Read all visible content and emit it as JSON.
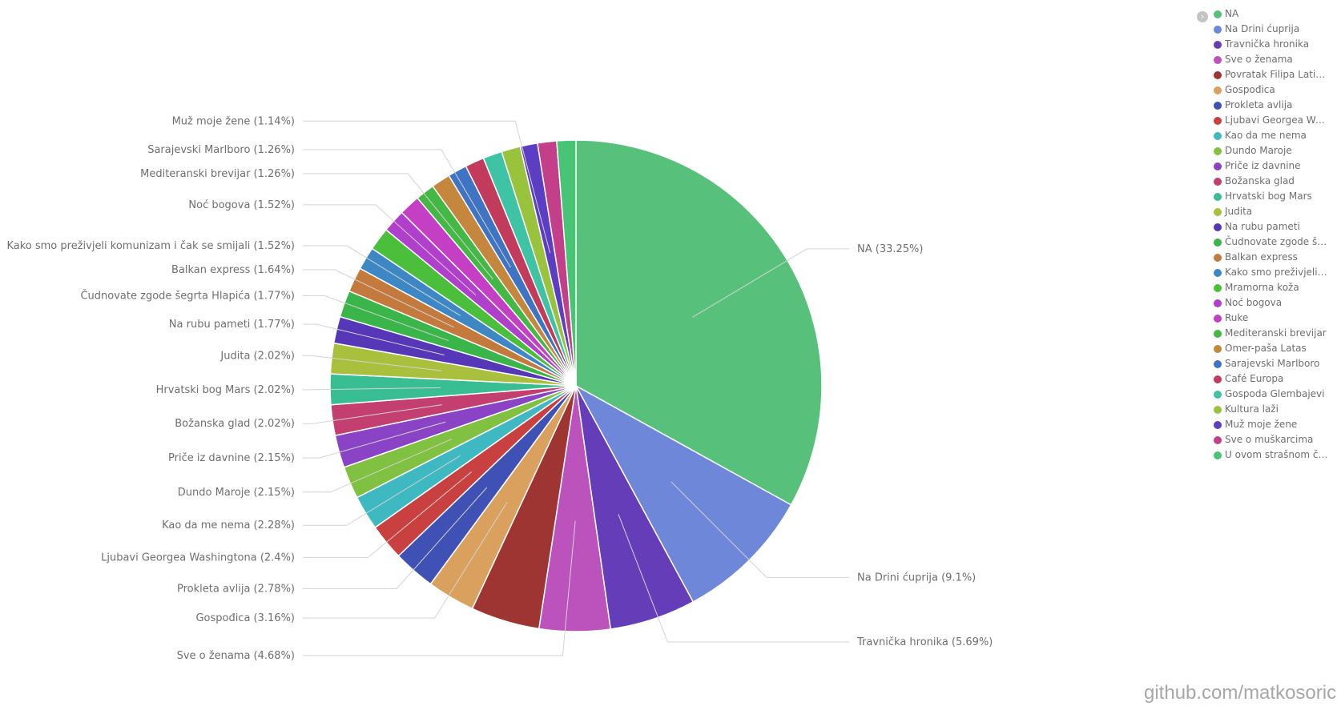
{
  "chart_data": {
    "type": "pie",
    "label_format": "{name} ({pct}%)",
    "slices": [
      {
        "name": "NA",
        "label": "NA",
        "value": 33.25,
        "color": "#57c17b"
      },
      {
        "name": "Na Drini ćuprija",
        "label": "Na Drini ćuprija",
        "value": 9.1,
        "color": "#6f87d8"
      },
      {
        "name": "Travnička hronika",
        "label": "Travnička hronika",
        "value": 5.69,
        "color": "#663db8"
      },
      {
        "name": "Sve o ženama",
        "label": "Sve o ženama",
        "value": 4.68,
        "color": "#bc52bc"
      },
      {
        "name": "Povratak Filipa Latinovicza",
        "label": "Povratak Filipa Latino...",
        "value": 4.55,
        "color": "#9e3533"
      },
      {
        "name": "Gospođica",
        "label": "Gospođica",
        "value": 3.16,
        "color": "#daa05d"
      },
      {
        "name": "Prokleta avlija",
        "label": "Prokleta avlija",
        "value": 2.78,
        "color": "#3f51b5"
      },
      {
        "name": "Ljubavi Georgea Washingtona",
        "label": "Ljubavi Georgea Was...",
        "value": 2.4,
        "color": "#c94040"
      },
      {
        "name": "Kao da me nema",
        "label": "Kao da me nema",
        "value": 2.28,
        "color": "#3eb8c1"
      },
      {
        "name": "Dundo Maroje",
        "label": "Dundo Maroje",
        "value": 2.15,
        "color": "#80c142"
      },
      {
        "name": "Priče iz davnine",
        "label": "Priče iz davnine",
        "value": 2.15,
        "color": "#8b43c6"
      },
      {
        "name": "Božanska glad",
        "label": "Božanska glad",
        "value": 2.02,
        "color": "#c23f6f"
      },
      {
        "name": "Hrvatski bog Mars",
        "label": "Hrvatski bog Mars",
        "value": 2.02,
        "color": "#39be93"
      },
      {
        "name": "Judita",
        "label": "Judita",
        "value": 2.02,
        "color": "#a9c03d"
      },
      {
        "name": "Na rubu pameti",
        "label": "Na rubu pameti",
        "value": 1.77,
        "color": "#5637b8"
      },
      {
        "name": "Čudnovate zgode šegrta Hlapića",
        "label": "Čudnovate zgode šeg...",
        "value": 1.77,
        "color": "#3ab54a"
      },
      {
        "name": "Balkan express",
        "label": "Balkan express",
        "value": 1.64,
        "color": "#c47a3d"
      },
      {
        "name": "Kako smo preživjeli komunizam i čak se smijali",
        "label": "Kako smo preživjeli k...",
        "value": 1.52,
        "color": "#3d87c4"
      },
      {
        "name": "Mramorna koža",
        "label": "Mramorna koža",
        "value": 1.52,
        "color": "#4bbf3c"
      },
      {
        "name": "Noć bogova",
        "label": "Noć bogova",
        "value": 1.52,
        "color": "#b03fcc"
      },
      {
        "name": "Ruke",
        "label": "Ruke",
        "value": 1.39,
        "color": "#c43fc4"
      },
      {
        "name": "Mediteranski brevijar",
        "label": "Mediteranski brevijar",
        "value": 1.26,
        "color": "#44b844"
      },
      {
        "name": "Omer-paša Latas",
        "label": "Omer-paša Latas",
        "value": 1.26,
        "color": "#c4873d"
      },
      {
        "name": "Sarajevski Marlboro",
        "label": "Sarajevski Marlboro",
        "value": 1.26,
        "color": "#3f74c4"
      },
      {
        "name": "Café Europa",
        "label": "Café Europa",
        "value": 1.26,
        "color": "#c23a5c"
      },
      {
        "name": "Gospoda Glembajevi",
        "label": "Gospoda Glembajevi",
        "value": 1.26,
        "color": "#3ec4a4"
      },
      {
        "name": "Kultura laži",
        "label": "Kultura laži",
        "value": 1.26,
        "color": "#99c23d"
      },
      {
        "name": "Muž moje žene",
        "label": "Muž moje žene",
        "value": 1.14,
        "color": "#5b3ec4"
      },
      {
        "name": "Sve o muškarcima",
        "label": "Sve o muškarcima",
        "value": 1.26,
        "color": "#c43f8a"
      },
      {
        "name": "U ovom strašnom času",
        "label": "U ovom strašnom času",
        "value": 1.26,
        "color": "#47c474"
      }
    ],
    "labeled_slices": [
      "NA",
      "Na Drini ćuprija",
      "Travnička hronika",
      "Sve o ženama",
      "Gospođica",
      "Prokleta avlija",
      "Ljubavi Georgea Washingtona",
      "Kao da me nema",
      "Dundo Maroje",
      "Priče iz davnine",
      "Božanska glad",
      "Hrvatski bog Mars",
      "Judita",
      "Na rubu pameti",
      "Čudnovate zgode šegrta Hlapića",
      "Balkan express",
      "Kako smo preživjeli komunizam i čak se smijali",
      "Noć bogova",
      "Mediteranski brevijar",
      "Sarajevski Marlboro",
      "Muž moje žene"
    ],
    "legend_placement": "top-right"
  },
  "watermark": "github.com/matkosoric"
}
